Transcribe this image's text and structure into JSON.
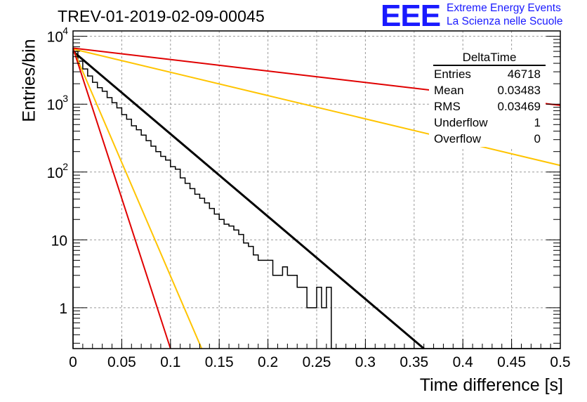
{
  "header": {
    "title": "TREV-01-2019-02-09-00045",
    "logo_text": "EEE",
    "logo_line1": "Extreme Energy Events",
    "logo_line2": "La Scienza nelle Scuole",
    "logo_color": "#1a1aff"
  },
  "stats": {
    "title": "DeltaTime",
    "rows": [
      {
        "label": "Entries",
        "value": "46718"
      },
      {
        "label": "Mean",
        "value": "0.03483"
      },
      {
        "label": "RMS",
        "value": "0.03469"
      },
      {
        "label": "Underflow",
        "value": "1"
      },
      {
        "label": "Overflow",
        "value": "0"
      }
    ]
  },
  "chart_data": {
    "type": "line",
    "xlabel": "Time difference [s]",
    "ylabel": "Entries/bin",
    "xlim": [
      0,
      0.5
    ],
    "ylim": [
      0.25,
      12000
    ],
    "yscale": "log",
    "grid": true,
    "x_ticks": [
      "0",
      "0.05",
      "0.1",
      "0.15",
      "0.2",
      "0.25",
      "0.3",
      "0.35",
      "0.4",
      "0.45",
      "0.5"
    ],
    "x_tick_values": [
      0,
      0.05,
      0.1,
      0.15,
      0.2,
      0.25,
      0.3,
      0.35,
      0.4,
      0.45,
      0.5
    ],
    "y_ticks": [
      {
        "value": 1,
        "mant": "1",
        "exp": ""
      },
      {
        "value": 10,
        "mant": "10",
        "exp": ""
      },
      {
        "value": 100,
        "mant": "10",
        "exp": "2"
      },
      {
        "value": 1000,
        "mant": "10",
        "exp": "3"
      },
      {
        "value": 10000,
        "mant": "10",
        "exp": "4"
      }
    ],
    "histogram": {
      "color": "#000000",
      "bin_width": 0.005,
      "values": [
        6000,
        4300,
        3300,
        2600,
        2100,
        1750,
        1550,
        1250,
        1050,
        880,
        700,
        600,
        480,
        420,
        350,
        290,
        240,
        200,
        170,
        150,
        120,
        110,
        82,
        68,
        57,
        47,
        41,
        35,
        29,
        24,
        20,
        17,
        16,
        14,
        12,
        9,
        8,
        6,
        5,
        5,
        5,
        3,
        3,
        4,
        3,
        3,
        2,
        2,
        1,
        1,
        2,
        1,
        2,
        0,
        0,
        0,
        0,
        0,
        0,
        0,
        0,
        0,
        0,
        0,
        0,
        0,
        0,
        0,
        0,
        0,
        0,
        0,
        0,
        0,
        0,
        0,
        0,
        0,
        0,
        0,
        0,
        0,
        0,
        0,
        0,
        0,
        0,
        0,
        0,
        0,
        0,
        0,
        0,
        0,
        0,
        0,
        0,
        0,
        0,
        0
      ]
    },
    "series": [
      {
        "color": "#000000",
        "x": [
          0,
          0.36
        ],
        "y": [
          6000,
          0.25
        ]
      },
      {
        "color": "#ffc400",
        "x": [
          0,
          0.5
        ],
        "y": [
          6500,
          125
        ]
      },
      {
        "color": "#ffc400",
        "x": [
          0,
          0.132
        ],
        "y": [
          6500,
          0.25
        ]
      },
      {
        "color": "#e00000",
        "x": [
          0,
          0.5
        ],
        "y": [
          6700,
          960
        ]
      },
      {
        "color": "#e00000",
        "x": [
          0,
          0.1
        ],
        "y": [
          6700,
          0.25
        ]
      }
    ]
  }
}
